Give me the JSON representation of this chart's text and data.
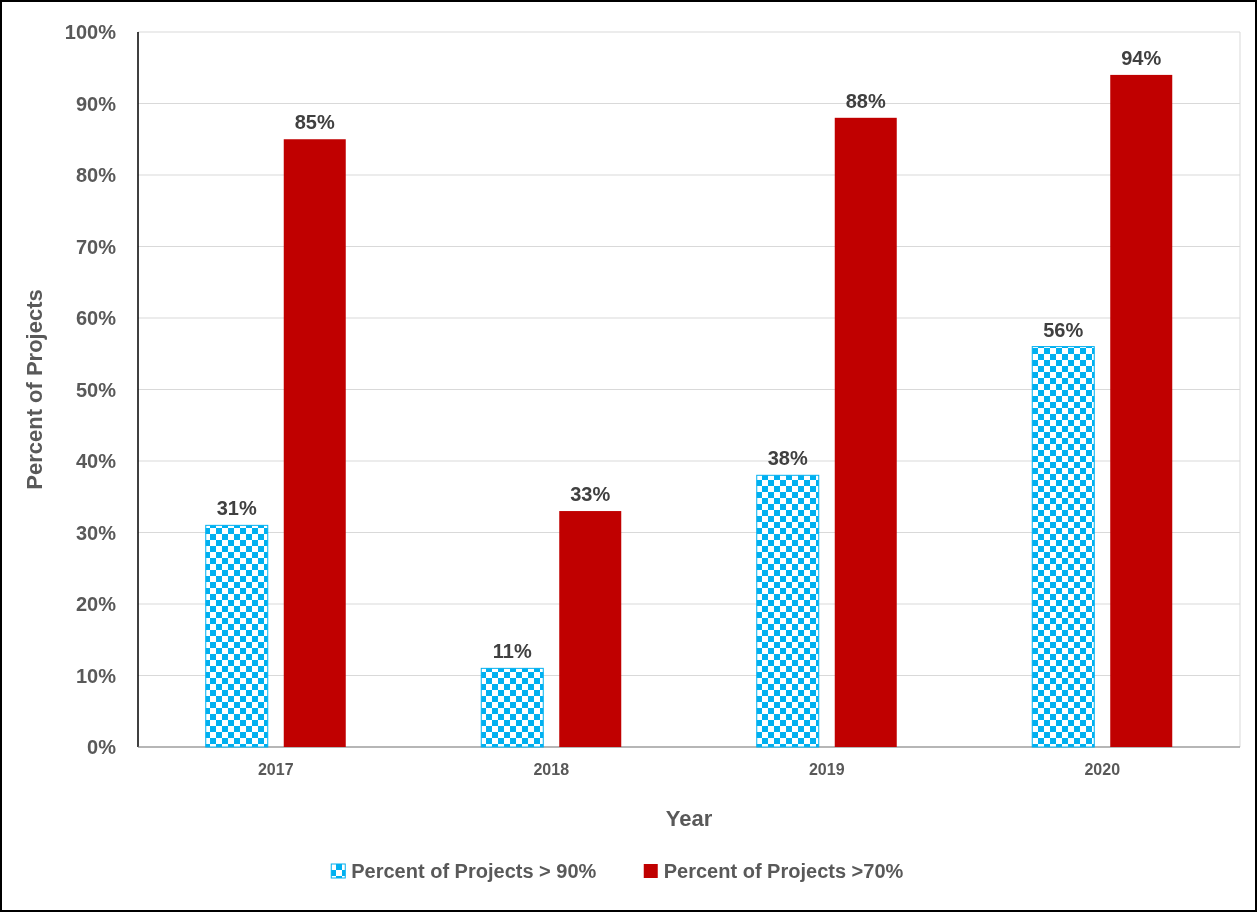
{
  "chart_data": {
    "type": "bar",
    "xlabel": "Year",
    "ylabel": "Percent of Projects",
    "categories": [
      "2017",
      "2018",
      "2019",
      "2020"
    ],
    "series": [
      {
        "name": "Percent of Projects > 90%",
        "color": "#00b0f0",
        "values": [
          31,
          11,
          38,
          56
        ],
        "value_labels": [
          "31%",
          "11%",
          "38%",
          "56%"
        ]
      },
      {
        "name": "Percent of Projects >70%",
        "color": "#c00000",
        "values": [
          85,
          33,
          88,
          94
        ],
        "value_labels": [
          "85%",
          "33%",
          "88%",
          "94%"
        ]
      }
    ],
    "ylim": [
      0,
      100
    ],
    "yticks": [
      {
        "value": 0,
        "label": "0%"
      },
      {
        "value": 10,
        "label": "10%"
      },
      {
        "value": 20,
        "label": "20%"
      },
      {
        "value": 30,
        "label": "30%"
      },
      {
        "value": 40,
        "label": "40%"
      },
      {
        "value": 50,
        "label": "50%"
      },
      {
        "value": 60,
        "label": "60%"
      },
      {
        "value": 70,
        "label": "70%"
      },
      {
        "value": 80,
        "label": "80%"
      },
      {
        "value": 90,
        "label": "90%"
      },
      {
        "value": 100,
        "label": "100%"
      }
    ],
    "grid": "y",
    "legend": "bottom"
  }
}
